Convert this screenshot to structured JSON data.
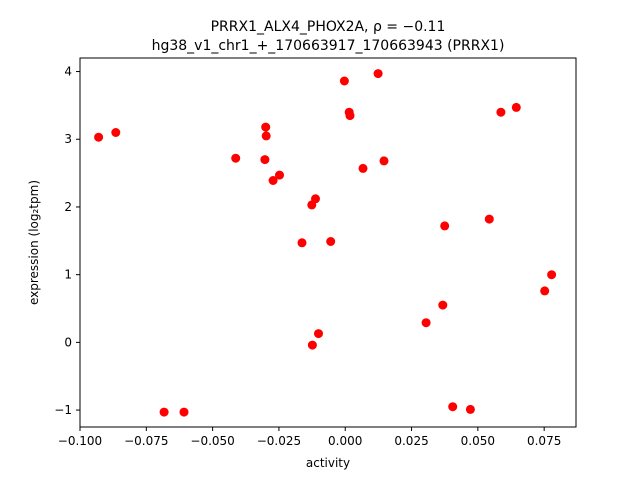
{
  "chart_data": {
    "type": "scatter",
    "title_line1": "PRRX1_ALX4_PHOX2A, ρ = −0.11",
    "title_line2": "hg38_v1_chr1_+_170663917_170663943 (PRRX1)",
    "xlabel": "activity",
    "ylabel": "expression (log₂tpm)",
    "xlim": [
      -0.1,
      0.087
    ],
    "ylim": [
      -1.25,
      4.2
    ],
    "xticks": [
      -0.1,
      -0.075,
      -0.05,
      -0.025,
      0.0,
      0.025,
      0.05,
      0.075
    ],
    "xtick_labels": [
      "−0.100",
      "−0.075",
      "−0.050",
      "−0.025",
      "0.000",
      "0.025",
      "0.050",
      "0.075"
    ],
    "yticks": [
      -1,
      0,
      1,
      2,
      3,
      4
    ],
    "ytick_labels": [
      "−1",
      "0",
      "1",
      "2",
      "3",
      "4"
    ],
    "point_color": "#ff0000",
    "grid": false,
    "points": [
      {
        "x": -0.093,
        "y": 3.03
      },
      {
        "x": -0.0865,
        "y": 3.1
      },
      {
        "x": -0.0683,
        "y": -1.03
      },
      {
        "x": -0.0608,
        "y": -1.03
      },
      {
        "x": -0.0413,
        "y": 2.72
      },
      {
        "x": -0.03,
        "y": 3.18
      },
      {
        "x": -0.0298,
        "y": 3.05
      },
      {
        "x": -0.0303,
        "y": 2.7
      },
      {
        "x": -0.0272,
        "y": 2.39
      },
      {
        "x": -0.0248,
        "y": 2.47
      },
      {
        "x": -0.0163,
        "y": 1.47
      },
      {
        "x": -0.0126,
        "y": 2.03
      },
      {
        "x": -0.0112,
        "y": 2.12
      },
      {
        "x": -0.0124,
        "y": -0.04
      },
      {
        "x": -0.0101,
        "y": 0.13
      },
      {
        "x": -0.0055,
        "y": 1.49
      },
      {
        "x": -0.0003,
        "y": 3.86
      },
      {
        "x": 0.0015,
        "y": 3.4
      },
      {
        "x": 0.0018,
        "y": 3.35
      },
      {
        "x": 0.0124,
        "y": 3.97
      },
      {
        "x": 0.0067,
        "y": 2.57
      },
      {
        "x": 0.0146,
        "y": 2.68
      },
      {
        "x": 0.0305,
        "y": 0.29
      },
      {
        "x": 0.0368,
        "y": 0.55
      },
      {
        "x": 0.0375,
        "y": 1.72
      },
      {
        "x": 0.0405,
        "y": -0.95
      },
      {
        "x": 0.0472,
        "y": -0.99
      },
      {
        "x": 0.0543,
        "y": 1.82
      },
      {
        "x": 0.0587,
        "y": 3.4
      },
      {
        "x": 0.0645,
        "y": 3.47
      },
      {
        "x": 0.0752,
        "y": 0.76
      },
      {
        "x": 0.0778,
        "y": 1.0
      }
    ]
  }
}
